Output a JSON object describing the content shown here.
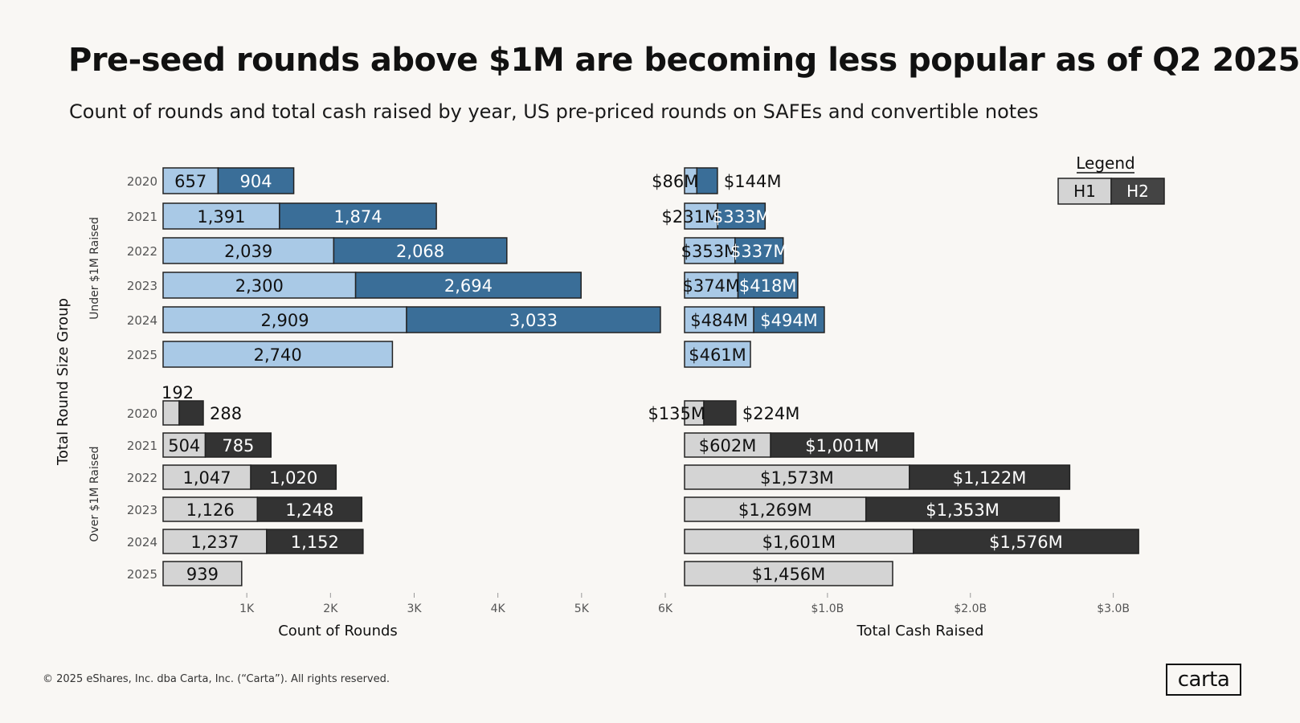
{
  "title": "Pre-seed rounds  above $1M are becoming less popular as of Q2 2025",
  "subtitle": "Count of rounds and total cash raised  by year, US pre-priced rounds on SAFEs and convertible notes",
  "footer": "© 2025 eShares, Inc. dba Carta, Inc. (“Carta”). All rights reserved.",
  "logo": "carta",
  "legend": {
    "title": "Legend",
    "h1": "H1",
    "h2": "H2"
  },
  "colors": {
    "under_h1": "#a9c9e6",
    "under_h2": "#3a6e98",
    "over_h1": "#d4d4d4",
    "over_h2": "#333333",
    "legend_h1": "#d4d4d4",
    "legend_h2": "#444444",
    "axis_text": "#555555"
  },
  "chart_data": {
    "type": "bar",
    "orientation": "horizontal",
    "stacked": true,
    "y_axis_title": "Total Round Size Group",
    "groups": [
      {
        "name": "Under $1M Raised",
        "years": [
          "2020",
          "2021",
          "2022",
          "2023",
          "2024",
          "2025"
        ]
      },
      {
        "name": "Over $1M Raised",
        "years": [
          "2020",
          "2021",
          "2022",
          "2023",
          "2024",
          "2025"
        ]
      }
    ],
    "panels": [
      {
        "name": "count",
        "xlabel": "Count of Rounds",
        "xlim": [
          0,
          6000
        ],
        "ticks": [
          1000,
          2000,
          3000,
          4000,
          5000,
          6000
        ],
        "tick_labels": [
          "1K",
          "2K",
          "3K",
          "4K",
          "5K",
          "6K"
        ],
        "series": [
          {
            "group": "Under $1M Raised",
            "h1": [
              657,
              1391,
              2039,
              2300,
              2909,
              2740
            ],
            "h2": [
              904,
              1874,
              2068,
              2694,
              3033,
              null
            ],
            "h1_labels": [
              "657",
              "1,391",
              "2,039",
              "2,300",
              "2,909",
              "2,740"
            ],
            "h2_labels": [
              "904",
              "1,874",
              "2,068",
              "2,694",
              "3,033",
              ""
            ]
          },
          {
            "group": "Over $1M Raised",
            "h1": [
              192,
              504,
              1047,
              1126,
              1237,
              939
            ],
            "h2": [
              288,
              785,
              1020,
              1248,
              1152,
              null
            ],
            "h1_labels": [
              "192",
              "504",
              "1,047",
              "1,126",
              "1,237",
              "939"
            ],
            "h2_labels": [
              "288",
              "785",
              "1,020",
              "1,248",
              "1,152",
              ""
            ]
          }
        ]
      },
      {
        "name": "cash",
        "xlabel": "Total Cash Raised",
        "xlim": [
          0,
          3300
        ],
        "unit": "$M",
        "ticks": [
          1000,
          2000,
          3000
        ],
        "tick_labels": [
          "$1.0B",
          "$2.0B",
          "$3.0B"
        ],
        "series": [
          {
            "group": "Under $1M Raised",
            "h1": [
              86,
              231,
              353,
              374,
              484,
              461
            ],
            "h2": [
              144,
              333,
              337,
              418,
              494,
              null
            ],
            "h1_labels": [
              "$86M",
              "$231M",
              "$353M",
              "$374M",
              "$484M",
              "$461M"
            ],
            "h2_labels": [
              "$144M",
              "$333M",
              "$337M",
              "$418M",
              "$494M",
              ""
            ]
          },
          {
            "group": "Over $1M Raised",
            "h1": [
              135,
              602,
              1573,
              1269,
              1601,
              1456
            ],
            "h2": [
              224,
              1001,
              1122,
              1353,
              1576,
              null
            ],
            "h1_labels": [
              "$135M",
              "$602M",
              "$1,573M",
              "$1,269M",
              "$1,601M",
              "$1,456M"
            ],
            "h2_labels": [
              "$224M",
              "$1,001M",
              "$1,122M",
              "$1,353M",
              "$1,576M",
              ""
            ]
          }
        ]
      }
    ]
  }
}
